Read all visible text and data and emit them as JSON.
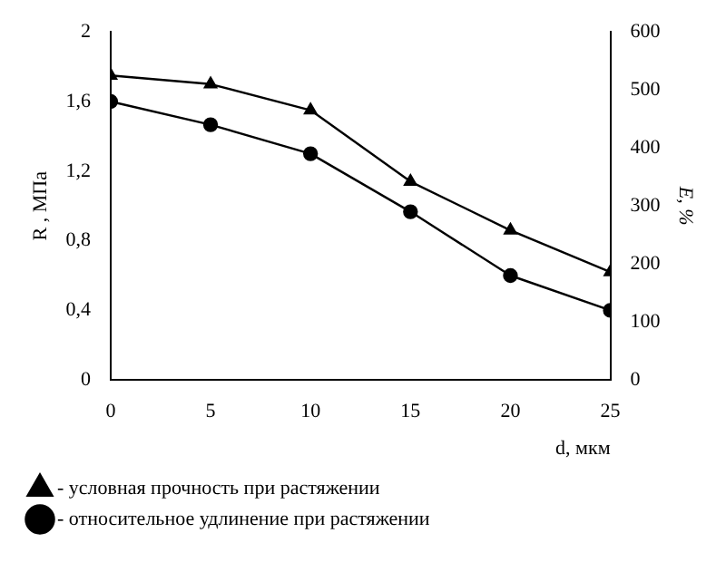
{
  "chart_data": {
    "type": "line",
    "xlabel": "d, мкм",
    "ylabel": "R , МПа",
    "y2label": "E, %",
    "x": [
      0,
      5,
      10,
      15,
      20,
      25
    ],
    "series": [
      {
        "name": "- условная прочность при растяжении",
        "color": "#000000",
        "values": [
          1.75,
          1.7,
          1.55,
          1.14,
          0.86,
          0.62
        ],
        "marker": "triangle"
      },
      {
        "name": "- относительное удлинение при растяжении",
        "color": "#000000",
        "values": [
          480,
          440,
          390,
          290,
          180,
          120
        ],
        "axis": "y2",
        "marker": "circle"
      }
    ],
    "xlim": [
      0,
      25
    ],
    "xticks": [
      0,
      5,
      10,
      15,
      20,
      25
    ],
    "ylim": [
      0,
      2
    ],
    "yticks": [
      0,
      {
        "value": 0.4,
        "label": "0,4"
      },
      {
        "value": 0.8,
        "label": "0,8"
      },
      {
        "value": 1.2,
        "label": "1,2"
      },
      {
        "value": 1.6,
        "label": "1,6"
      },
      2
    ],
    "y2lim": [
      0,
      600
    ],
    "y2ticks": [
      0,
      100,
      200,
      300,
      400,
      500,
      600
    ],
    "grid": false,
    "legend": "bottom",
    "line_style": "solid"
  }
}
